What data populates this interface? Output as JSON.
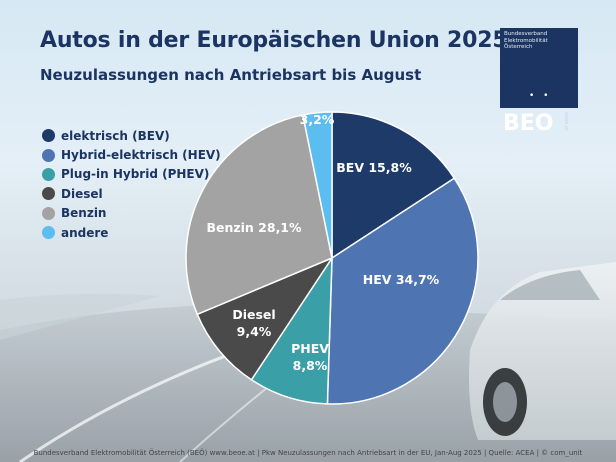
{
  "title": "Autos in der Europäischen Union 2025",
  "subtitle": "Neuzulassungen nach Antriebsart bis August",
  "logo": {
    "org_line1": "Bundesverband",
    "org_line2": "Elektromobilität",
    "org_line3": "Österreich",
    "dots": "• •",
    "text": "BEO",
    "url": "beoe.at"
  },
  "footer": "Bundesverband Elektromobilität Österreich (BEÖ) www.beoe.at | Pkw Neuzulassungen nach Antriebsart in der EU, Jan-Aug 2025 | Quelle: ACEA | © com_unit",
  "chart_data": {
    "type": "pie",
    "title": "Autos in der Europäischen Union 2025",
    "subtitle": "Neuzulassungen nach Antriebsart bis August",
    "legend_position": "left",
    "slices": [
      {
        "name": "elektrisch (BEV)",
        "short": "BEV",
        "value": 15.8,
        "label": "BEV 15,8%",
        "color": "#1e3a68"
      },
      {
        "name": "Hybrid-elektrisch (HEV)",
        "short": "HEV",
        "value": 34.7,
        "label": "HEV 34,7%",
        "color": "#4f74b2"
      },
      {
        "name": "Plug-in Hybrid (PHEV)",
        "short": "PHEV",
        "value": 8.8,
        "label": "PHEV\n8,8%",
        "color": "#3a9fa6"
      },
      {
        "name": "Diesel",
        "short": "Diesel",
        "value": 9.4,
        "label": "Diesel\n9,4%",
        "color": "#4a4a4a"
      },
      {
        "name": "Benzin",
        "short": "Benzin",
        "value": 28.1,
        "label": "Benzin 28,1%",
        "color": "#a3a3a3"
      },
      {
        "name": "andere",
        "short": "andere",
        "value": 3.2,
        "label": "3,2%",
        "color": "#5cbdf0"
      }
    ]
  }
}
